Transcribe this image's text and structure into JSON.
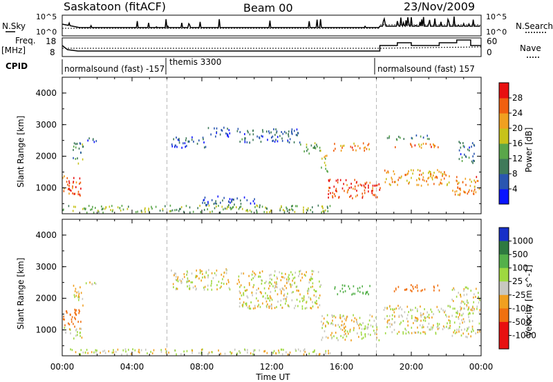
{
  "header": {
    "radar": "Saskatoon (fitACF)",
    "beam": "Beam 00",
    "date": "23/Nov/2009"
  },
  "status_panels": {
    "nsky_label": "N.Sky",
    "freq_label_1": "Freq.",
    "freq_label_2": "[MHz]",
    "cpid_label": "CPID",
    "nsearch_label": "N.Search",
    "nave_label": "Nave",
    "noise_ticks_left": [
      "10^5",
      "10^0"
    ],
    "noise_ticks_right": [
      "10^5",
      "10^0"
    ],
    "freq_ticks": [
      "18",
      "8"
    ],
    "nave_ticks": [
      "60",
      "0"
    ],
    "cpid_segments": [
      {
        "label": "normalsound (fast) -157",
        "start_hour": 0.0
      },
      {
        "label": "themis 3300",
        "start_hour": 6.0
      },
      {
        "label": "normalsound (fast) 157",
        "start_hour": 18.0
      }
    ]
  },
  "axes": {
    "ylabel": "Slant Range [km]",
    "xlabel": "Time UT",
    "xticks": [
      "00:00",
      "04:00",
      "08:00",
      "12:00",
      "16:00",
      "20:00",
      "00:00"
    ],
    "yticks": [
      "1000",
      "2000",
      "3000",
      "4000"
    ]
  },
  "colorbars": {
    "power": {
      "label": "Power [dB]",
      "ticks": [
        "4",
        "8",
        "12",
        "16",
        "20",
        "24",
        "28"
      ],
      "colors": [
        "#0a14ff",
        "#2a56b0",
        "#3f7a5a",
        "#5aa64a",
        "#c7c21a",
        "#f0a020",
        "#f06010",
        "#e81010"
      ]
    },
    "velocity": {
      "label": "Velocity [m s^-1]",
      "ticks": [
        "1000",
        "500",
        "100",
        "25",
        "-25",
        "-100",
        "-500",
        "-1000"
      ],
      "colors": [
        "#1830c8",
        "#2e7a40",
        "#54b04a",
        "#9ed840",
        "#c8c8c0",
        "#f0a020",
        "#f07010",
        "#e81010"
      ]
    }
  },
  "chart_data": {
    "type": "heatmap",
    "title": "Saskatoon (fitACF) Beam 00 23/Nov/2009",
    "xlabel": "Time UT",
    "ylabel": "Slant Range [km]",
    "x_range_hours": [
      0,
      24
    ],
    "y_range_km": [
      180,
      4500
    ],
    "panels": [
      {
        "name": "Power",
        "unit": "dB",
        "scale": [
          0,
          32
        ],
        "regions": [
          {
            "t0": 0.0,
            "t1": 1.1,
            "r0": 750,
            "r1": 1400,
            "level": 26
          },
          {
            "t0": 0.6,
            "t1": 1.2,
            "r0": 1800,
            "r1": 2500,
            "level": 12
          },
          {
            "t0": 1.3,
            "t1": 2.0,
            "r0": 2400,
            "r1": 2600,
            "level": 6
          },
          {
            "t0": 6.2,
            "t1": 8.2,
            "r0": 2300,
            "r1": 2650,
            "level": 6
          },
          {
            "t0": 8.2,
            "t1": 9.6,
            "r0": 2650,
            "r1": 2950,
            "level": 5
          },
          {
            "t0": 10.0,
            "t1": 13.6,
            "r0": 2450,
            "r1": 2900,
            "level": 8
          },
          {
            "t0": 13.6,
            "t1": 14.8,
            "r0": 2100,
            "r1": 2450,
            "level": 14
          },
          {
            "t0": 14.8,
            "t1": 15.2,
            "r0": 1500,
            "r1": 2100,
            "level": 18
          },
          {
            "t0": 15.2,
            "t1": 18.2,
            "r0": 700,
            "r1": 1300,
            "level": 28
          },
          {
            "t0": 15.5,
            "t1": 17.6,
            "r0": 2200,
            "r1": 2450,
            "level": 24
          },
          {
            "t0": 18.4,
            "t1": 22.2,
            "r0": 1100,
            "r1": 1600,
            "level": 22
          },
          {
            "t0": 19.0,
            "t1": 21.6,
            "r0": 2300,
            "r1": 2450,
            "level": 24
          },
          {
            "t0": 18.6,
            "t1": 21.0,
            "r0": 2550,
            "r1": 2700,
            "level": 10
          },
          {
            "t0": 22.7,
            "t1": 23.6,
            "r0": 1800,
            "r1": 2500,
            "level": 8
          },
          {
            "t0": 22.3,
            "t1": 23.9,
            "r0": 800,
            "r1": 1400,
            "level": 24
          },
          {
            "t0": 0.0,
            "t1": 15.5,
            "r0": 180,
            "r1": 480,
            "level": 14
          },
          {
            "t0": 8.0,
            "t1": 11.0,
            "r0": 480,
            "r1": 760,
            "level": 6
          }
        ]
      },
      {
        "name": "Velocity",
        "unit": "m/s",
        "scale": [
          -1000,
          1000
        ],
        "regions": [
          {
            "t0": 0.0,
            "t1": 1.1,
            "r0": 1100,
            "r1": 1700,
            "level": -300
          },
          {
            "t0": 0.0,
            "t1": 1.1,
            "r0": 750,
            "r1": 1100,
            "level": 0
          },
          {
            "t0": 0.6,
            "t1": 1.2,
            "r0": 1800,
            "r1": 2500,
            "level": 0
          },
          {
            "t0": 1.3,
            "t1": 2.0,
            "r0": 2400,
            "r1": 2600,
            "level": 0
          },
          {
            "t0": 6.2,
            "t1": 9.6,
            "r0": 2300,
            "r1": 2950,
            "level": 0
          },
          {
            "t0": 10.0,
            "t1": 14.8,
            "r0": 1700,
            "r1": 2900,
            "level": 0
          },
          {
            "t0": 14.8,
            "t1": 18.2,
            "r0": 700,
            "r1": 1500,
            "level": 0
          },
          {
            "t0": 15.5,
            "t1": 17.6,
            "r0": 2150,
            "r1": 2450,
            "level": 200
          },
          {
            "t0": 18.4,
            "t1": 22.2,
            "r0": 900,
            "r1": 1800,
            "level": 0
          },
          {
            "t0": 19.0,
            "t1": 21.6,
            "r0": 2250,
            "r1": 2450,
            "level": -200
          },
          {
            "t0": 22.3,
            "t1": 23.9,
            "r0": 800,
            "r1": 2400,
            "level": 0
          },
          {
            "t0": 0.0,
            "t1": 15.5,
            "r0": 180,
            "r1": 420,
            "level": 0
          }
        ]
      }
    ]
  }
}
